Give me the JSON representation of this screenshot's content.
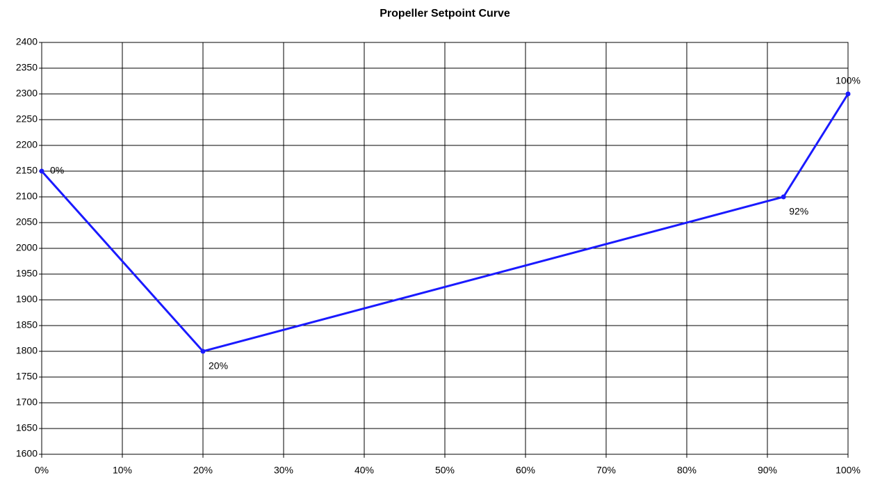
{
  "chart_data": {
    "type": "line",
    "title": "Propeller Setpoint Curve",
    "x": [
      0,
      20,
      92,
      100
    ],
    "series": [
      {
        "color": "#1a1aff",
        "values": [
          2150,
          1800,
          2100,
          2300
        ]
      }
    ],
    "x_labels": [
      "0%",
      "20%",
      "92%",
      "100%"
    ],
    "xlim": [
      0,
      100
    ],
    "xticks": [
      {
        "value": 0,
        "label": "0%"
      },
      {
        "value": 10,
        "label": "10%"
      },
      {
        "value": 20,
        "label": "20%"
      },
      {
        "value": 30,
        "label": "30%"
      },
      {
        "value": 40,
        "label": "40%"
      },
      {
        "value": 50,
        "label": "50%"
      },
      {
        "value": 60,
        "label": "60%"
      },
      {
        "value": 70,
        "label": "70%"
      },
      {
        "value": 80,
        "label": "80%"
      },
      {
        "value": 90,
        "label": "90%"
      },
      {
        "value": 100,
        "label": "100%"
      }
    ],
    "ylim": [
      1600,
      2400
    ],
    "yticks": [
      1600,
      1650,
      1700,
      1750,
      1800,
      1850,
      1900,
      1950,
      2000,
      2050,
      2100,
      2150,
      2200,
      2250,
      2300,
      2350,
      2400
    ],
    "grid": true
  }
}
